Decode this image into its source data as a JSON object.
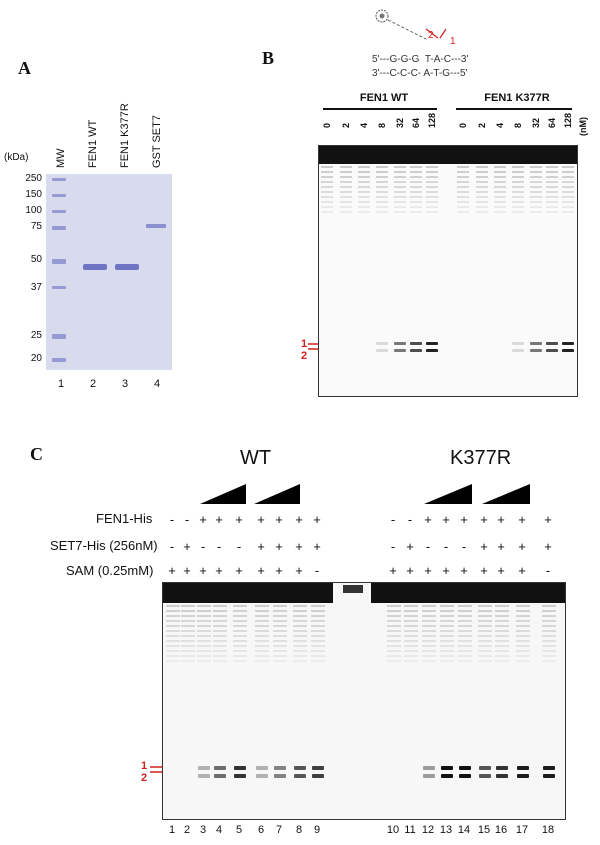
{
  "panel_a": {
    "letter": "A",
    "unit": "(kDa)",
    "lane_labels": [
      "MW",
      "FEN1 WT",
      "FEN1 K377R",
      "GST SET7"
    ],
    "markers": [
      "250",
      "150",
      "100",
      "75",
      "50",
      "37",
      "25",
      "20"
    ],
    "lane_numbers": [
      "1",
      "2",
      "3",
      "4"
    ]
  },
  "panel_b": {
    "letter": "B",
    "substrate_top": "5'---G-G-G  T-A-C---3'",
    "substrate_bottom": "3'---C-C-C- A-T-G---5'",
    "cleavage_marks": [
      "2",
      "1"
    ],
    "group_wt": "FEN1 WT",
    "group_mut": "FEN1 K377R",
    "concentrations": [
      "0",
      "2",
      "4",
      "8",
      "32",
      "64",
      "128"
    ],
    "unit": "(nM)",
    "product_labels": [
      "1",
      "2"
    ]
  },
  "panel_c": {
    "letter": "C",
    "group_wt": "WT",
    "group_mut": "K377R",
    "row_labels": [
      "FEN1-His",
      "SET7-His (256nM)",
      "SAM (0.25mM)"
    ],
    "wt_rows": [
      [
        "-",
        "-",
        "+",
        "+",
        "+",
        "+",
        "+",
        "+",
        "+"
      ],
      [
        "-",
        "+",
        "-",
        "-",
        "-",
        "+",
        "+",
        "+",
        "+"
      ],
      [
        "+",
        "+",
        "+",
        "+",
        "+",
        "+",
        "+",
        "+",
        "-"
      ]
    ],
    "mut_rows": [
      [
        "-",
        "-",
        "+",
        "+",
        "+",
        "+",
        "+",
        "+",
        "+"
      ],
      [
        "-",
        "+",
        "-",
        "-",
        "-",
        "+",
        "+",
        "+",
        "+"
      ],
      [
        "+",
        "+",
        "+",
        "+",
        "+",
        "+",
        "+",
        "+",
        "-"
      ]
    ],
    "lane_numbers": [
      "1",
      "2",
      "3",
      "4",
      "5",
      "6",
      "7",
      "8",
      "9",
      "10",
      "11",
      "12",
      "13",
      "14",
      "15",
      "16",
      "17",
      "18"
    ],
    "product_labels": [
      "1",
      "2"
    ]
  }
}
